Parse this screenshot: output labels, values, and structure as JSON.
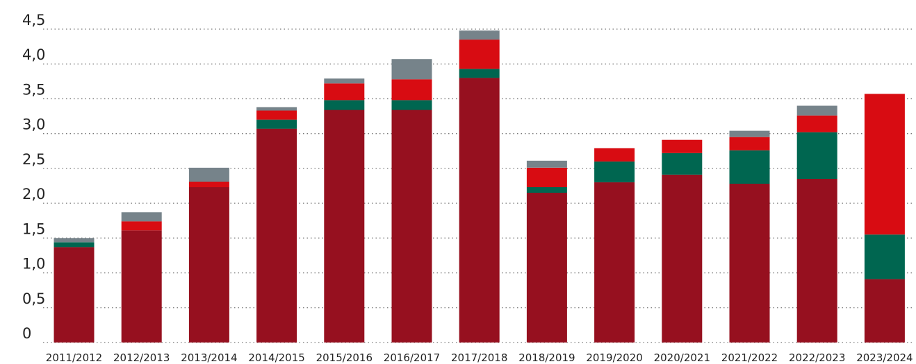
{
  "chart_data": {
    "type": "bar",
    "stacked": true,
    "categories": [
      "2011/2012",
      "2012/2013",
      "2013/2014",
      "2014/2015",
      "2015/2016",
      "2016/2017",
      "2017/2018",
      "2018/2019",
      "2019/2020",
      "2020/2021",
      "2021/2022",
      "2022/2023",
      "2023/2024"
    ],
    "series": [
      {
        "color": "#96101f",
        "values": [
          1.37,
          1.61,
          2.23,
          3.07,
          3.34,
          3.34,
          3.8,
          2.15,
          2.3,
          2.41,
          2.28,
          2.35,
          0.91
        ]
      },
      {
        "color": "#006650",
        "values": [
          0.07,
          0.0,
          0.0,
          0.13,
          0.14,
          0.14,
          0.13,
          0.08,
          0.3,
          0.31,
          0.48,
          0.67,
          0.64
        ]
      },
      {
        "color": "#d80c12",
        "values": [
          0.0,
          0.13,
          0.08,
          0.13,
          0.24,
          0.3,
          0.42,
          0.28,
          0.19,
          0.19,
          0.19,
          0.24,
          2.02
        ]
      },
      {
        "color": "#76838a",
        "values": [
          0.06,
          0.13,
          0.2,
          0.05,
          0.07,
          0.29,
          0.13,
          0.1,
          0.0,
          0.0,
          0.09,
          0.14,
          0.0
        ]
      }
    ],
    "y_ticks": [
      "0",
      "0,5",
      "1,0",
      "1,5",
      "2,0",
      "2,5",
      "3,0",
      "3,5",
      "4,0",
      "4,5"
    ],
    "ylim": [
      0,
      4.5
    ],
    "grid": true,
    "legend": "none"
  }
}
